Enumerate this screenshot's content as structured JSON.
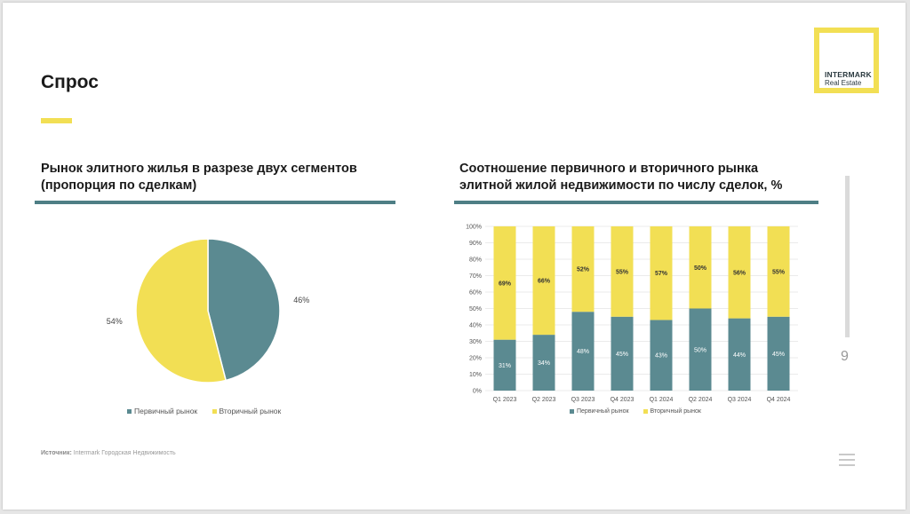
{
  "page": {
    "title": "Спрос",
    "page_number": "9",
    "source_label": "Источник:",
    "source_text": "Intermark Городская Недвижимость"
  },
  "logo": {
    "name": "INTERMARK",
    "subtitle": "Real Estate"
  },
  "colors": {
    "accent": "#f2df54",
    "primary": "#5b8a91",
    "rule": "#4e7e85"
  },
  "left_chart": {
    "title_line1": "Рынок элитного жилья в разрезе двух сегментов",
    "title_line2": "(пропорция по сделкам)",
    "legend_primary": "Первичный рынок",
    "legend_secondary": "Вторичный рынок"
  },
  "right_chart": {
    "title_line1": "Соотношение первичного и вторичного рынка",
    "title_line2": "элитной жилой недвижимости по числу сделок, %",
    "legend_primary": "Первичный рынок",
    "legend_secondary": "Вторичный рынок"
  },
  "chart_data": [
    {
      "type": "pie",
      "labels": [
        "Первичный рынок",
        "Вторичный рынок"
      ],
      "values": [
        46,
        54
      ],
      "value_labels": [
        "46%",
        "54%"
      ],
      "colors": [
        "#5b8a91",
        "#f2df54"
      ],
      "legend": "bottom"
    },
    {
      "type": "bar",
      "stacked": true,
      "categories": [
        "Q1 2023",
        "Q2 2023",
        "Q3 2023",
        "Q4 2023",
        "Q1 2024",
        "Q2 2024",
        "Q3 2024",
        "Q4 2024"
      ],
      "series": [
        {
          "name": "Первичный рынок",
          "values": [
            31,
            34,
            48,
            45,
            43,
            50,
            44,
            45
          ],
          "color": "#5b8a91"
        },
        {
          "name": "Вторичный рынок",
          "values": [
            69,
            66,
            52,
            55,
            57,
            50,
            56,
            55
          ],
          "color": "#f2df54"
        }
      ],
      "ylim": [
        0,
        100
      ],
      "yticks": [
        "0%",
        "10%",
        "20%",
        "30%",
        "40%",
        "50%",
        "60%",
        "70%",
        "80%",
        "90%",
        "100%"
      ],
      "grid": true,
      "legend": "bottom"
    }
  ]
}
